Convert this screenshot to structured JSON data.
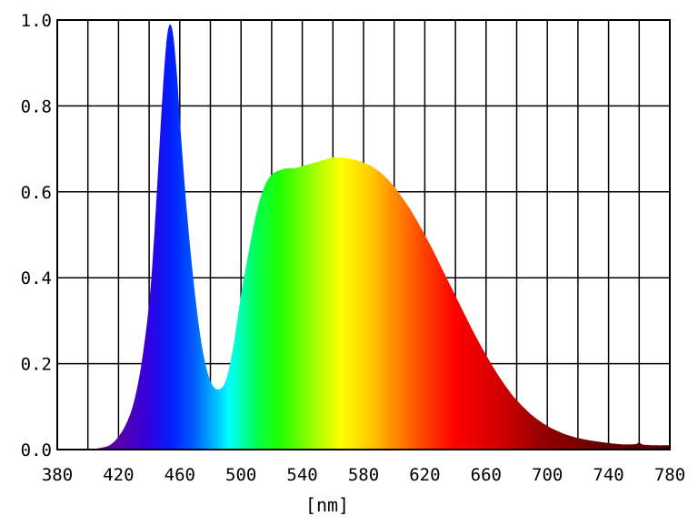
{
  "chart_data": {
    "type": "area",
    "title": "",
    "xlabel": "[nm]",
    "ylabel": "",
    "xlim": [
      380,
      780
    ],
    "ylim": [
      0.0,
      1.0
    ],
    "grid": true,
    "x_ticks": [
      380,
      420,
      460,
      500,
      540,
      580,
      620,
      660,
      700,
      740,
      780
    ],
    "x_tick_labels": [
      "380",
      "420",
      "460",
      "500",
      "540",
      "580",
      "620",
      "660",
      "700",
      "740",
      "780"
    ],
    "x_minor_grid": [
      380,
      400,
      420,
      440,
      460,
      480,
      500,
      520,
      540,
      560,
      580,
      600,
      620,
      640,
      660,
      680,
      700,
      720,
      740,
      760,
      780
    ],
    "y_ticks": [
      0.0,
      0.2,
      0.4,
      0.6,
      0.8,
      1.0
    ],
    "y_tick_labels": [
      "0.0",
      "0.2",
      "0.4",
      "0.6",
      "0.8",
      "1.0"
    ],
    "fill": "visible-spectrum-gradient",
    "series": [
      {
        "x": [
          380,
          390,
          400,
          410,
          415,
          420,
          425,
          430,
          435,
          440,
          443,
          446,
          449,
          452,
          455,
          458,
          461,
          465,
          470,
          475,
          480,
          485,
          490,
          495,
          500,
          505,
          510,
          515,
          520,
          525,
          530,
          535,
          540,
          545,
          550,
          555,
          560,
          565,
          570,
          575,
          580,
          585,
          590,
          595,
          600,
          605,
          610,
          615,
          620,
          625,
          630,
          635,
          640,
          645,
          650,
          655,
          660,
          665,
          670,
          675,
          680,
          690,
          700,
          710,
          720,
          730,
          740,
          750,
          758,
          760,
          762,
          770,
          780
        ],
        "y": [
          0.0,
          0.0,
          0.0,
          0.005,
          0.012,
          0.03,
          0.06,
          0.11,
          0.2,
          0.34,
          0.48,
          0.66,
          0.84,
          0.97,
          0.98,
          0.88,
          0.72,
          0.54,
          0.36,
          0.23,
          0.16,
          0.14,
          0.16,
          0.24,
          0.36,
          0.46,
          0.55,
          0.61,
          0.64,
          0.65,
          0.655,
          0.655,
          0.66,
          0.665,
          0.67,
          0.675,
          0.68,
          0.68,
          0.678,
          0.674,
          0.668,
          0.66,
          0.648,
          0.632,
          0.612,
          0.588,
          0.562,
          0.532,
          0.5,
          0.466,
          0.43,
          0.394,
          0.358,
          0.322,
          0.286,
          0.252,
          0.22,
          0.19,
          0.162,
          0.137,
          0.115,
          0.08,
          0.055,
          0.038,
          0.027,
          0.02,
          0.015,
          0.012,
          0.013,
          0.018,
          0.012,
          0.01,
          0.01
        ]
      }
    ]
  }
}
